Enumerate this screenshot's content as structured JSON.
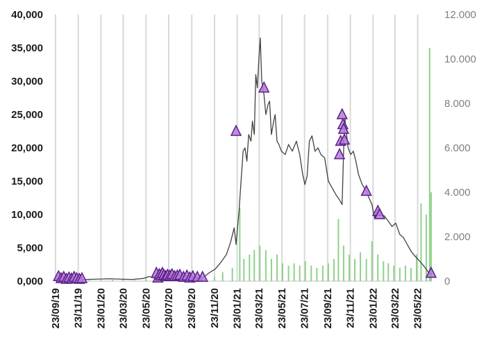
{
  "chart_data": {
    "type": "line",
    "title": "",
    "xlabel": "",
    "ylabel": "",
    "grid": "vertical",
    "legend": "none",
    "x_ticks": [
      "23/09/19",
      "23/11/19",
      "23/01/20",
      "23/03/20",
      "23/05/20",
      "23/07/20",
      "23/09/20",
      "23/11/20",
      "23/01/21",
      "23/03/21",
      "23/05/21",
      "23/07/21",
      "23/09/21",
      "23/11/21",
      "23/01/22",
      "23/03/22",
      "23/05/22"
    ],
    "x_range": [
      "2019-09-23",
      "2022-06-30"
    ],
    "y_left": {
      "min": 0,
      "max": 40000,
      "ticks": [
        "0,000",
        "5,000",
        "10,000",
        "15,000",
        "20,000",
        "25,000",
        "30,000",
        "35,000",
        "40,000"
      ]
    },
    "y_right": {
      "min": 0,
      "max": 12,
      "ticks": [
        "0",
        "2.000",
        "4.000",
        "6.000",
        "8.000",
        "10.000",
        "12.000"
      ]
    },
    "colors": {
      "line": "#404040",
      "bars": "#8fd18b",
      "marker_fill": "#b57bd9",
      "marker_stroke": "#5b1f86",
      "grid": "#d9d9d9"
    },
    "series": [
      {
        "type": "line",
        "axis": "left",
        "points": [
          [
            "2019-09-23",
            300
          ],
          [
            "2019-10-15",
            250
          ],
          [
            "2019-11-15",
            200
          ],
          [
            "2019-12-15",
            250
          ],
          [
            "2020-01-15",
            300
          ],
          [
            "2020-02-15",
            350
          ],
          [
            "2020-03-15",
            300
          ],
          [
            "2020-04-15",
            250
          ],
          [
            "2020-05-15",
            400
          ],
          [
            "2020-06-01",
            700
          ],
          [
            "2020-06-10",
            500
          ],
          [
            "2020-07-01",
            1000
          ],
          [
            "2020-07-20",
            900
          ],
          [
            "2020-08-10",
            800
          ],
          [
            "2020-09-01",
            900
          ],
          [
            "2020-09-20",
            700
          ],
          [
            "2020-10-10",
            500
          ],
          [
            "2020-10-25",
            600
          ],
          [
            "2020-11-10",
            1300
          ],
          [
            "2020-11-25",
            1800
          ],
          [
            "2020-12-10",
            2800
          ],
          [
            "2020-12-25",
            4000
          ],
          [
            "2021-01-05",
            5800
          ],
          [
            "2021-01-15",
            8000
          ],
          [
            "2021-01-20",
            5500
          ],
          [
            "2021-01-28",
            10500
          ],
          [
            "2021-02-03",
            15500
          ],
          [
            "2021-02-08",
            19500
          ],
          [
            "2021-02-13",
            20000
          ],
          [
            "2021-02-18",
            18000
          ],
          [
            "2021-02-23",
            22000
          ],
          [
            "2021-03-01",
            21000
          ],
          [
            "2021-03-05",
            24000
          ],
          [
            "2021-03-10",
            22000
          ],
          [
            "2021-03-14",
            31000
          ],
          [
            "2021-03-18",
            29000
          ],
          [
            "2021-03-22",
            33000
          ],
          [
            "2021-03-26",
            36500
          ],
          [
            "2021-03-30",
            30000
          ],
          [
            "2021-04-05",
            28000
          ],
          [
            "2021-04-10",
            25000
          ],
          [
            "2021-04-16",
            26500
          ],
          [
            "2021-04-20",
            27000
          ],
          [
            "2021-04-25",
            22000
          ],
          [
            "2021-05-01",
            24000
          ],
          [
            "2021-05-05",
            25000
          ],
          [
            "2021-05-10",
            21000
          ],
          [
            "2021-05-15",
            20500
          ],
          [
            "2021-05-22",
            19500
          ],
          [
            "2021-06-01",
            19000
          ],
          [
            "2021-06-10",
            20500
          ],
          [
            "2021-06-20",
            19500
          ],
          [
            "2021-07-01",
            21000
          ],
          [
            "2021-07-10",
            19000
          ],
          [
            "2021-07-18",
            16000
          ],
          [
            "2021-07-24",
            14500
          ],
          [
            "2021-07-30",
            15800
          ],
          [
            "2021-08-05",
            21000
          ],
          [
            "2021-08-12",
            21800
          ],
          [
            "2021-08-20",
            19500
          ],
          [
            "2021-08-28",
            20000
          ],
          [
            "2021-09-05",
            19000
          ],
          [
            "2021-09-15",
            18500
          ],
          [
            "2021-09-25",
            15000
          ],
          [
            "2021-10-05",
            14000
          ],
          [
            "2021-10-15",
            13000
          ],
          [
            "2021-10-25",
            12200
          ],
          [
            "2021-11-01",
            11500
          ],
          [
            "2021-11-05",
            19500
          ],
          [
            "2021-11-08",
            24500
          ],
          [
            "2021-11-12",
            22500
          ],
          [
            "2021-11-17",
            20000
          ],
          [
            "2021-11-24",
            19000
          ],
          [
            "2021-12-01",
            19500
          ],
          [
            "2021-12-08",
            18000
          ],
          [
            "2021-12-15",
            16000
          ],
          [
            "2021-12-25",
            14500
          ],
          [
            "2022-01-05",
            13500
          ],
          [
            "2022-01-12",
            12500
          ],
          [
            "2022-01-20",
            11500
          ],
          [
            "2022-01-27",
            9500
          ],
          [
            "2022-02-05",
            10800
          ],
          [
            "2022-02-12",
            10000
          ],
          [
            "2022-02-22",
            9800
          ],
          [
            "2022-03-05",
            9000
          ],
          [
            "2022-03-15",
            8200
          ],
          [
            "2022-03-25",
            8700
          ],
          [
            "2022-04-05",
            7000
          ],
          [
            "2022-04-15",
            6500
          ],
          [
            "2022-04-25",
            5500
          ],
          [
            "2022-05-05",
            4500
          ],
          [
            "2022-05-15",
            3800
          ],
          [
            "2022-05-25",
            3200
          ],
          [
            "2022-06-05",
            2500
          ],
          [
            "2022-06-15",
            1800
          ],
          [
            "2022-06-22",
            1200
          ],
          [
            "2022-06-30",
            1000
          ]
        ]
      },
      {
        "type": "markers",
        "shape": "triangle",
        "axis": "left",
        "points": [
          [
            "2019-10-01",
            700
          ],
          [
            "2019-10-08",
            400
          ],
          [
            "2019-10-15",
            600
          ],
          [
            "2019-10-22",
            300
          ],
          [
            "2019-10-29",
            500
          ],
          [
            "2019-11-05",
            350
          ],
          [
            "2019-11-12",
            600
          ],
          [
            "2019-11-19",
            400
          ],
          [
            "2019-11-26",
            300
          ],
          [
            "2019-12-03",
            400
          ],
          [
            "2020-06-20",
            1200
          ],
          [
            "2020-06-24",
            500
          ],
          [
            "2020-06-28",
            1000
          ],
          [
            "2020-07-02",
            800
          ],
          [
            "2020-07-06",
            1200
          ],
          [
            "2020-07-10",
            900
          ],
          [
            "2020-07-15",
            700
          ],
          [
            "2020-07-20",
            900
          ],
          [
            "2020-07-26",
            800
          ],
          [
            "2020-08-01",
            1000
          ],
          [
            "2020-08-08",
            700
          ],
          [
            "2020-08-15",
            800
          ],
          [
            "2020-08-22",
            900
          ],
          [
            "2020-09-01",
            600
          ],
          [
            "2020-09-10",
            800
          ],
          [
            "2020-09-18",
            500
          ],
          [
            "2020-09-26",
            700
          ],
          [
            "2020-10-08",
            600
          ],
          [
            "2020-10-22",
            600
          ],
          [
            "2021-01-20",
            22500
          ],
          [
            "2021-04-05",
            29000
          ],
          [
            "2021-10-25",
            19000
          ],
          [
            "2021-10-28",
            21000
          ],
          [
            "2021-11-01",
            25000
          ],
          [
            "2021-11-03",
            23500
          ],
          [
            "2021-11-05",
            22800
          ],
          [
            "2021-11-07",
            21200
          ],
          [
            "2022-01-05",
            13500
          ],
          [
            "2022-02-05",
            10500
          ],
          [
            "2022-02-10",
            10000
          ],
          [
            "2022-06-28",
            1200
          ]
        ]
      },
      {
        "type": "bar",
        "axis": "right",
        "points": [
          [
            "2019-09-23",
            0.03
          ],
          [
            "2019-10-23",
            0.04
          ],
          [
            "2019-11-23",
            0.03
          ],
          [
            "2019-12-23",
            0.05
          ],
          [
            "2020-01-23",
            0.04
          ],
          [
            "2020-02-23",
            0.06
          ],
          [
            "2020-03-23",
            0.1
          ],
          [
            "2020-04-23",
            0.05
          ],
          [
            "2020-05-23",
            0.12
          ],
          [
            "2020-06-23",
            0.3
          ],
          [
            "2020-07-23",
            0.18
          ],
          [
            "2020-08-23",
            0.1
          ],
          [
            "2020-09-23",
            0.08
          ],
          [
            "2020-10-23",
            0.1
          ],
          [
            "2020-11-23",
            0.2
          ],
          [
            "2020-12-15",
            0.4
          ],
          [
            "2021-01-10",
            0.6
          ],
          [
            "2021-01-30",
            3.3
          ],
          [
            "2021-02-10",
            1.0
          ],
          [
            "2021-02-25",
            1.2
          ],
          [
            "2021-03-10",
            1.4
          ],
          [
            "2021-03-25",
            1.6
          ],
          [
            "2021-04-10",
            1.4
          ],
          [
            "2021-04-25",
            1.0
          ],
          [
            "2021-05-10",
            1.2
          ],
          [
            "2021-05-25",
            0.8
          ],
          [
            "2021-06-10",
            0.7
          ],
          [
            "2021-06-25",
            0.8
          ],
          [
            "2021-07-10",
            0.7
          ],
          [
            "2021-07-25",
            0.9
          ],
          [
            "2021-08-10",
            0.7
          ],
          [
            "2021-08-25",
            0.6
          ],
          [
            "2021-09-10",
            0.7
          ],
          [
            "2021-09-25",
            0.8
          ],
          [
            "2021-10-10",
            1.0
          ],
          [
            "2021-10-22",
            2.8
          ],
          [
            "2021-11-05",
            1.6
          ],
          [
            "2021-11-20",
            1.2
          ],
          [
            "2021-12-05",
            1.0
          ],
          [
            "2021-12-20",
            1.3
          ],
          [
            "2022-01-05",
            1.0
          ],
          [
            "2022-01-20",
            1.8
          ],
          [
            "2022-02-05",
            1.2
          ],
          [
            "2022-02-20",
            0.9
          ],
          [
            "2022-03-05",
            0.8
          ],
          [
            "2022-03-20",
            0.7
          ],
          [
            "2022-04-05",
            0.6
          ],
          [
            "2022-04-20",
            0.7
          ],
          [
            "2022-05-05",
            0.6
          ],
          [
            "2022-05-20",
            1.2
          ],
          [
            "2022-06-01",
            3.5
          ],
          [
            "2022-06-15",
            3.0
          ],
          [
            "2022-06-24",
            10.5
          ],
          [
            "2022-06-28",
            4.0
          ]
        ]
      }
    ]
  }
}
